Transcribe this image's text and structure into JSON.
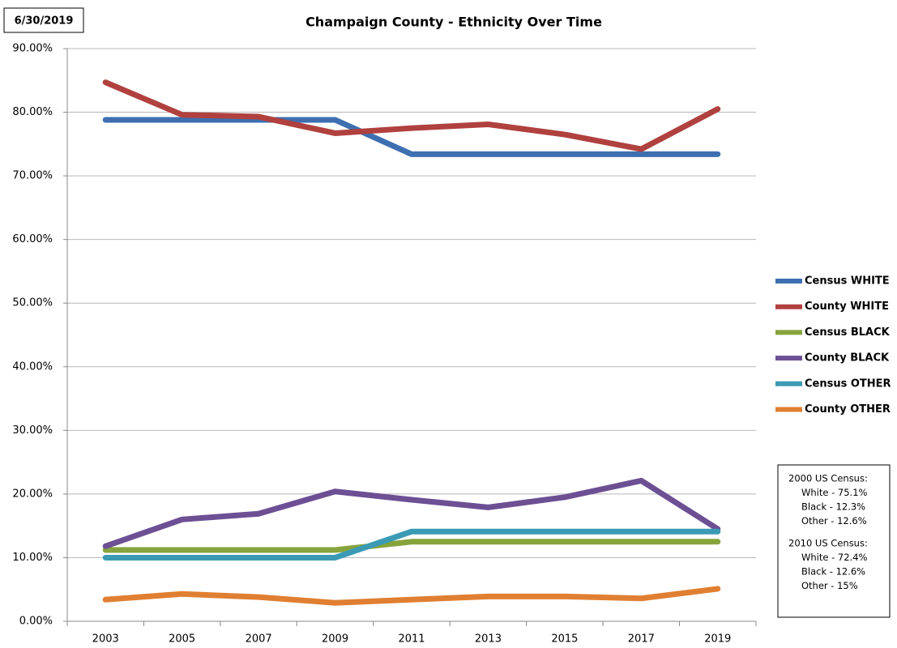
{
  "chart_data": {
    "type": "line",
    "title": "Champaign County - Ethnicity Over Time",
    "date_label": "6/30/2019",
    "categories": [
      "2003",
      "2005",
      "2007",
      "2009",
      "2011",
      "2013",
      "2015",
      "2017",
      "2019"
    ],
    "series": [
      {
        "name": "Census WHITE",
        "color": "#3e6fb0",
        "values": [
          78.8,
          78.8,
          78.8,
          78.8,
          73.4,
          73.4,
          73.4,
          73.4,
          73.4
        ]
      },
      {
        "name": "County WHITE",
        "color": "#b0413e",
        "values": [
          84.7,
          79.6,
          79.3,
          76.7,
          77.5,
          78.1,
          76.5,
          74.2,
          80.5
        ]
      },
      {
        "name": "Census BLACK",
        "color": "#86a33c",
        "values": [
          11.2,
          11.2,
          11.2,
          11.2,
          12.5,
          12.5,
          12.5,
          12.5,
          12.5
        ]
      },
      {
        "name": "County BLACK",
        "color": "#6d4f94",
        "values": [
          11.8,
          16.0,
          16.9,
          20.4,
          19.1,
          17.9,
          19.5,
          22.1,
          14.5
        ]
      },
      {
        "name": "Census OTHER",
        "color": "#3b9ab4",
        "values": [
          10.0,
          10.0,
          10.0,
          10.0,
          14.1,
          14.1,
          14.1,
          14.1,
          14.1
        ]
      },
      {
        "name": "County OTHER",
        "color": "#e07f32",
        "values": [
          3.4,
          4.3,
          3.8,
          2.9,
          3.4,
          3.9,
          3.9,
          3.6,
          5.1
        ]
      }
    ],
    "ylim": [
      0,
      90
    ],
    "yticks": [
      {
        "value": 0,
        "label": "0.00%"
      },
      {
        "value": 10,
        "label": "10.00%"
      },
      {
        "value": 20,
        "label": "20.00%"
      },
      {
        "value": 30,
        "label": "30.00%"
      },
      {
        "value": 40,
        "label": "40.00%"
      },
      {
        "value": 50,
        "label": "50.00%"
      },
      {
        "value": 60,
        "label": "60.00%"
      },
      {
        "value": 70,
        "label": "70.00%"
      },
      {
        "value": 80,
        "label": "80.00%"
      },
      {
        "value": 90,
        "label": "90.00%"
      }
    ],
    "grid": true,
    "legend": "right",
    "annotation_lines": [
      "2000 US Census:",
      "White - 75.1%",
      "Black  - 12.3%",
      "Other - 12.6%",
      "2010 US Census:",
      "White -  72.4%",
      "Black  - 12.6%",
      "Other - 15%"
    ]
  }
}
